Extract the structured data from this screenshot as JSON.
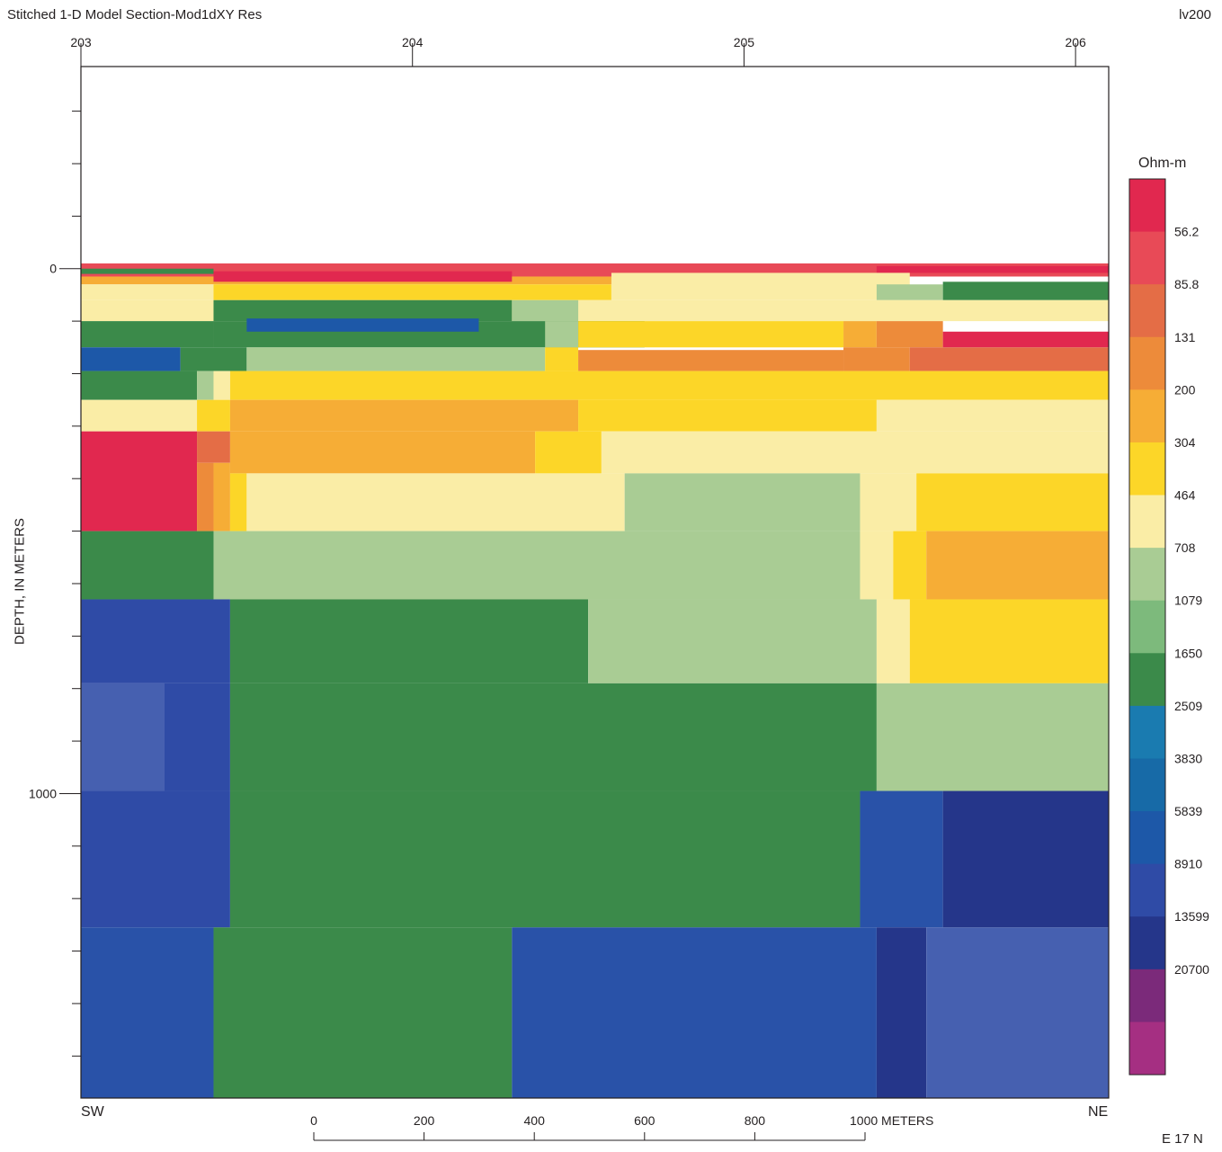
{
  "header": {
    "title": "Stitched 1-D Model Section-Mod1dXY Res",
    "tag": "lv200"
  },
  "side_labels": {
    "left": "SW",
    "right": "NE"
  },
  "grid_note": "E 17 N",
  "chart_data": {
    "type": "heatmap",
    "title": "Stitched 1-D Model Section-Mod1dXY Res",
    "ylabel": "DEPTH, IN METERS",
    "top_axis": {
      "ticks": [
        {
          "value": 203,
          "label": "203"
        },
        {
          "value": 204,
          "label": "204"
        },
        {
          "value": 205,
          "label": "205"
        },
        {
          "value": 206,
          "label": "206"
        }
      ]
    },
    "y_axis": {
      "ylim": [
        -385,
        1580
      ],
      "labeled_ticks": [
        {
          "value": 0,
          "label": "0"
        },
        {
          "value": 1000,
          "label": "1000"
        }
      ],
      "minor_interval": 100
    },
    "scale_bar": {
      "unit": "METERS",
      "ticks": [
        {
          "value": 0,
          "label": "0"
        },
        {
          "value": 200,
          "label": "200"
        },
        {
          "value": 400,
          "label": "400"
        },
        {
          "value": 600,
          "label": "600"
        },
        {
          "value": 800,
          "label": "800"
        },
        {
          "value": 1000,
          "label": "1000 METERS"
        }
      ]
    },
    "colorbar": {
      "title": "Ohm-m",
      "labels": [
        "56.2",
        "85.8",
        "131",
        "200",
        "304",
        "464",
        "708",
        "1079",
        "1650",
        "2509",
        "3830",
        "5839",
        "8910",
        "13599",
        "20700"
      ],
      "colors": [
        "#e1284f",
        "#e84a57",
        "#e46d46",
        "#ed8b3a",
        "#f6ad36",
        "#fcd628",
        "#faeda6",
        "#a9cc94",
        "#7dba7c",
        "#3b8a4a",
        "#1a7bb0",
        "#176aa7",
        "#1d58a8",
        "#2f4ba6",
        "#25368a",
        "#7b2a7a",
        "#a52f82"
      ]
    },
    "cells": [
      {
        "x0": 203.0,
        "x1": 206.1,
        "d0": -10,
        "d1": 15,
        "color": "#e84a57"
      },
      {
        "x0": 203.0,
        "x1": 205.4,
        "d0": 15,
        "d1": 30,
        "color": "#f6ad36"
      },
      {
        "x0": 203.0,
        "x1": 203.4,
        "d0": 0,
        "d1": 10,
        "color": "#3b8a4a"
      },
      {
        "x0": 203.4,
        "x1": 204.3,
        "d0": 5,
        "d1": 25,
        "color": "#e1284f"
      },
      {
        "x0": 205.4,
        "x1": 206.1,
        "d0": -5,
        "d1": 8,
        "color": "#e1284f"
      },
      {
        "x0": 203.0,
        "x1": 203.4,
        "d0": 30,
        "d1": 60,
        "color": "#faeda6"
      },
      {
        "x0": 203.4,
        "x1": 204.6,
        "d0": 30,
        "d1": 60,
        "color": "#fcd628"
      },
      {
        "x0": 204.6,
        "x1": 205.5,
        "d0": 8,
        "d1": 60,
        "color": "#faeda6"
      },
      {
        "x0": 205.4,
        "x1": 205.6,
        "d0": 30,
        "d1": 60,
        "color": "#a9cc94"
      },
      {
        "x0": 205.6,
        "x1": 206.1,
        "d0": 25,
        "d1": 60,
        "color": "#3b8a4a"
      },
      {
        "x0": 203.0,
        "x1": 206.1,
        "d0": 60,
        "d1": 100,
        "color": "#faeda6"
      },
      {
        "x0": 203.4,
        "x1": 204.3,
        "d0": 60,
        "d1": 100,
        "color": "#3b8a4a"
      },
      {
        "x0": 204.3,
        "x1": 204.5,
        "d0": 60,
        "d1": 100,
        "color": "#a9cc94"
      },
      {
        "x0": 203.0,
        "x1": 203.4,
        "d0": 100,
        "d1": 150,
        "color": "#3b8a4a"
      },
      {
        "x0": 203.4,
        "x1": 204.7,
        "d0": 100,
        "d1": 150,
        "color": "#3b8a4a"
      },
      {
        "x0": 203.5,
        "x1": 204.2,
        "d0": 95,
        "d1": 120,
        "color": "#1d58a8"
      },
      {
        "x0": 204.4,
        "x1": 204.5,
        "d0": 100,
        "d1": 150,
        "color": "#a9cc94"
      },
      {
        "x0": 204.5,
        "x1": 205.3,
        "d0": 100,
        "d1": 150,
        "color": "#fcd628"
      },
      {
        "x0": 205.3,
        "x1": 205.4,
        "d0": 100,
        "d1": 150,
        "color": "#f6ad36"
      },
      {
        "x0": 205.4,
        "x1": 205.6,
        "d0": 100,
        "d1": 150,
        "color": "#ed8b3a"
      },
      {
        "x0": 205.6,
        "x1": 206.1,
        "d0": 120,
        "d1": 150,
        "color": "#e1284f"
      },
      {
        "x0": 203.0,
        "x1": 203.3,
        "d0": 150,
        "d1": 195,
        "color": "#1d58a8"
      },
      {
        "x0": 203.3,
        "x1": 203.5,
        "d0": 150,
        "d1": 195,
        "color": "#3b8a4a"
      },
      {
        "x0": 203.5,
        "x1": 204.4,
        "d0": 150,
        "d1": 195,
        "color": "#a9cc94"
      },
      {
        "x0": 204.4,
        "x1": 204.5,
        "d0": 150,
        "d1": 195,
        "color": "#fcd628"
      },
      {
        "x0": 204.5,
        "x1": 205.3,
        "d0": 155,
        "d1": 195,
        "color": "#ed8b3a"
      },
      {
        "x0": 205.3,
        "x1": 205.5,
        "d0": 150,
        "d1": 195,
        "color": "#ed8b3a"
      },
      {
        "x0": 205.5,
        "x1": 206.1,
        "d0": 150,
        "d1": 195,
        "color": "#e46d46"
      },
      {
        "x0": 203.0,
        "x1": 203.35,
        "d0": 195,
        "d1": 250,
        "color": "#3b8a4a"
      },
      {
        "x0": 203.35,
        "x1": 203.4,
        "d0": 195,
        "d1": 250,
        "color": "#a9cc94"
      },
      {
        "x0": 203.4,
        "x1": 203.45,
        "d0": 195,
        "d1": 250,
        "color": "#faeda6"
      },
      {
        "x0": 203.45,
        "x1": 206.1,
        "d0": 195,
        "d1": 250,
        "color": "#fcd628"
      },
      {
        "x0": 203.0,
        "x1": 203.35,
        "d0": 250,
        "d1": 310,
        "color": "#faeda6"
      },
      {
        "x0": 203.35,
        "x1": 203.45,
        "d0": 250,
        "d1": 310,
        "color": "#fcd628"
      },
      {
        "x0": 203.45,
        "x1": 204.5,
        "d0": 250,
        "d1": 310,
        "color": "#f6ad36"
      },
      {
        "x0": 204.5,
        "x1": 205.4,
        "d0": 250,
        "d1": 310,
        "color": "#fcd628"
      },
      {
        "x0": 205.4,
        "x1": 206.1,
        "d0": 250,
        "d1": 310,
        "color": "#faeda6"
      },
      {
        "x0": 203.0,
        "x1": 203.35,
        "d0": 310,
        "d1": 500,
        "color": "#e1284f"
      },
      {
        "x0": 203.35,
        "x1": 203.45,
        "d0": 310,
        "d1": 370,
        "color": "#e46d46"
      },
      {
        "x0": 203.45,
        "x1": 204.37,
        "d0": 310,
        "d1": 390,
        "color": "#f6ad36"
      },
      {
        "x0": 204.37,
        "x1": 204.57,
        "d0": 310,
        "d1": 390,
        "color": "#fcd628"
      },
      {
        "x0": 204.57,
        "x1": 206.1,
        "d0": 310,
        "d1": 390,
        "color": "#faeda6"
      },
      {
        "x0": 203.35,
        "x1": 203.4,
        "d0": 370,
        "d1": 500,
        "color": "#ed8b3a"
      },
      {
        "x0": 203.4,
        "x1": 203.45,
        "d0": 370,
        "d1": 500,
        "color": "#f6ad36"
      },
      {
        "x0": 203.45,
        "x1": 203.5,
        "d0": 390,
        "d1": 500,
        "color": "#fcd628"
      },
      {
        "x0": 203.5,
        "x1": 204.64,
        "d0": 390,
        "d1": 500,
        "color": "#faeda6"
      },
      {
        "x0": 204.64,
        "x1": 205.35,
        "d0": 390,
        "d1": 500,
        "color": "#a9cc94"
      },
      {
        "x0": 205.35,
        "x1": 205.52,
        "d0": 390,
        "d1": 500,
        "color": "#faeda6"
      },
      {
        "x0": 205.52,
        "x1": 206.1,
        "d0": 390,
        "d1": 500,
        "color": "#fcd628"
      },
      {
        "x0": 203.0,
        "x1": 203.4,
        "d0": 500,
        "d1": 630,
        "color": "#3b8a4a"
      },
      {
        "x0": 203.4,
        "x1": 205.35,
        "d0": 500,
        "d1": 630,
        "color": "#a9cc94"
      },
      {
        "x0": 205.35,
        "x1": 205.45,
        "d0": 500,
        "d1": 630,
        "color": "#faeda6"
      },
      {
        "x0": 205.45,
        "x1": 205.55,
        "d0": 500,
        "d1": 630,
        "color": "#fcd628"
      },
      {
        "x0": 205.55,
        "x1": 206.1,
        "d0": 500,
        "d1": 630,
        "color": "#f6ad36"
      },
      {
        "x0": 203.0,
        "x1": 203.45,
        "d0": 630,
        "d1": 790,
        "color": "#2f4ba6"
      },
      {
        "x0": 203.45,
        "x1": 204.53,
        "d0": 630,
        "d1": 790,
        "color": "#3b8a4a"
      },
      {
        "x0": 204.53,
        "x1": 205.4,
        "d0": 630,
        "d1": 790,
        "color": "#a9cc94"
      },
      {
        "x0": 205.4,
        "x1": 205.5,
        "d0": 630,
        "d1": 790,
        "color": "#faeda6"
      },
      {
        "x0": 205.5,
        "x1": 206.1,
        "d0": 630,
        "d1": 790,
        "color": "#fcd628"
      },
      {
        "x0": 203.0,
        "x1": 203.25,
        "d0": 790,
        "d1": 995,
        "color": "#4660b0"
      },
      {
        "x0": 203.25,
        "x1": 203.45,
        "d0": 790,
        "d1": 995,
        "color": "#2f4ba6"
      },
      {
        "x0": 203.45,
        "x1": 205.4,
        "d0": 790,
        "d1": 995,
        "color": "#3b8a4a"
      },
      {
        "x0": 205.4,
        "x1": 206.1,
        "d0": 790,
        "d1": 995,
        "color": "#a9cc94"
      },
      {
        "x0": 203.0,
        "x1": 203.45,
        "d0": 995,
        "d1": 1255,
        "color": "#2f4ba6"
      },
      {
        "x0": 203.45,
        "x1": 205.35,
        "d0": 995,
        "d1": 1255,
        "color": "#3b8a4a"
      },
      {
        "x0": 205.35,
        "x1": 205.6,
        "d0": 995,
        "d1": 1255,
        "color": "#2952a8"
      },
      {
        "x0": 205.6,
        "x1": 206.1,
        "d0": 995,
        "d1": 1255,
        "color": "#25368a"
      },
      {
        "x0": 203.0,
        "x1": 203.4,
        "d0": 1255,
        "d1": 1580,
        "color": "#2952a8"
      },
      {
        "x0": 203.4,
        "x1": 204.3,
        "d0": 1255,
        "d1": 1580,
        "color": "#3b8a4a"
      },
      {
        "x0": 204.3,
        "x1": 205.4,
        "d0": 1255,
        "d1": 1580,
        "color": "#2952a8"
      },
      {
        "x0": 205.4,
        "x1": 205.55,
        "d0": 1255,
        "d1": 1580,
        "color": "#25368a"
      },
      {
        "x0": 205.55,
        "x1": 206.1,
        "d0": 1255,
        "d1": 1580,
        "color": "#4660b0"
      }
    ]
  }
}
